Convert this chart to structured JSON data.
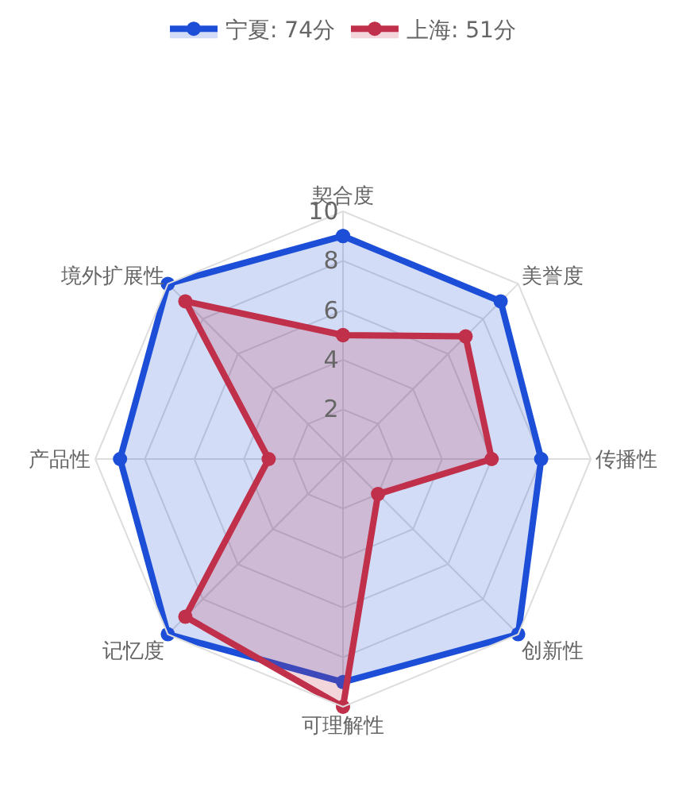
{
  "chart_data": {
    "type": "radar",
    "categories": [
      "契合度",
      "美誉度",
      "传播性",
      "创新性",
      "可理解性",
      "记忆度",
      "产品性",
      "境外扩展性"
    ],
    "series": [
      {
        "name": "宁夏: 74分",
        "color": "#1d4ed8",
        "values": [
          9,
          9,
          8,
          10,
          9,
          10,
          9,
          10
        ]
      },
      {
        "name": "上海: 51分",
        "color": "#c0304a",
        "values": [
          5,
          7,
          6,
          2,
          10,
          9,
          3,
          9
        ]
      }
    ],
    "ylim": [
      0,
      10
    ],
    "yticks": [
      2,
      4,
      6,
      8,
      10
    ],
    "grid": true,
    "legend": "top",
    "marker": "circle",
    "line_style": "solid"
  }
}
